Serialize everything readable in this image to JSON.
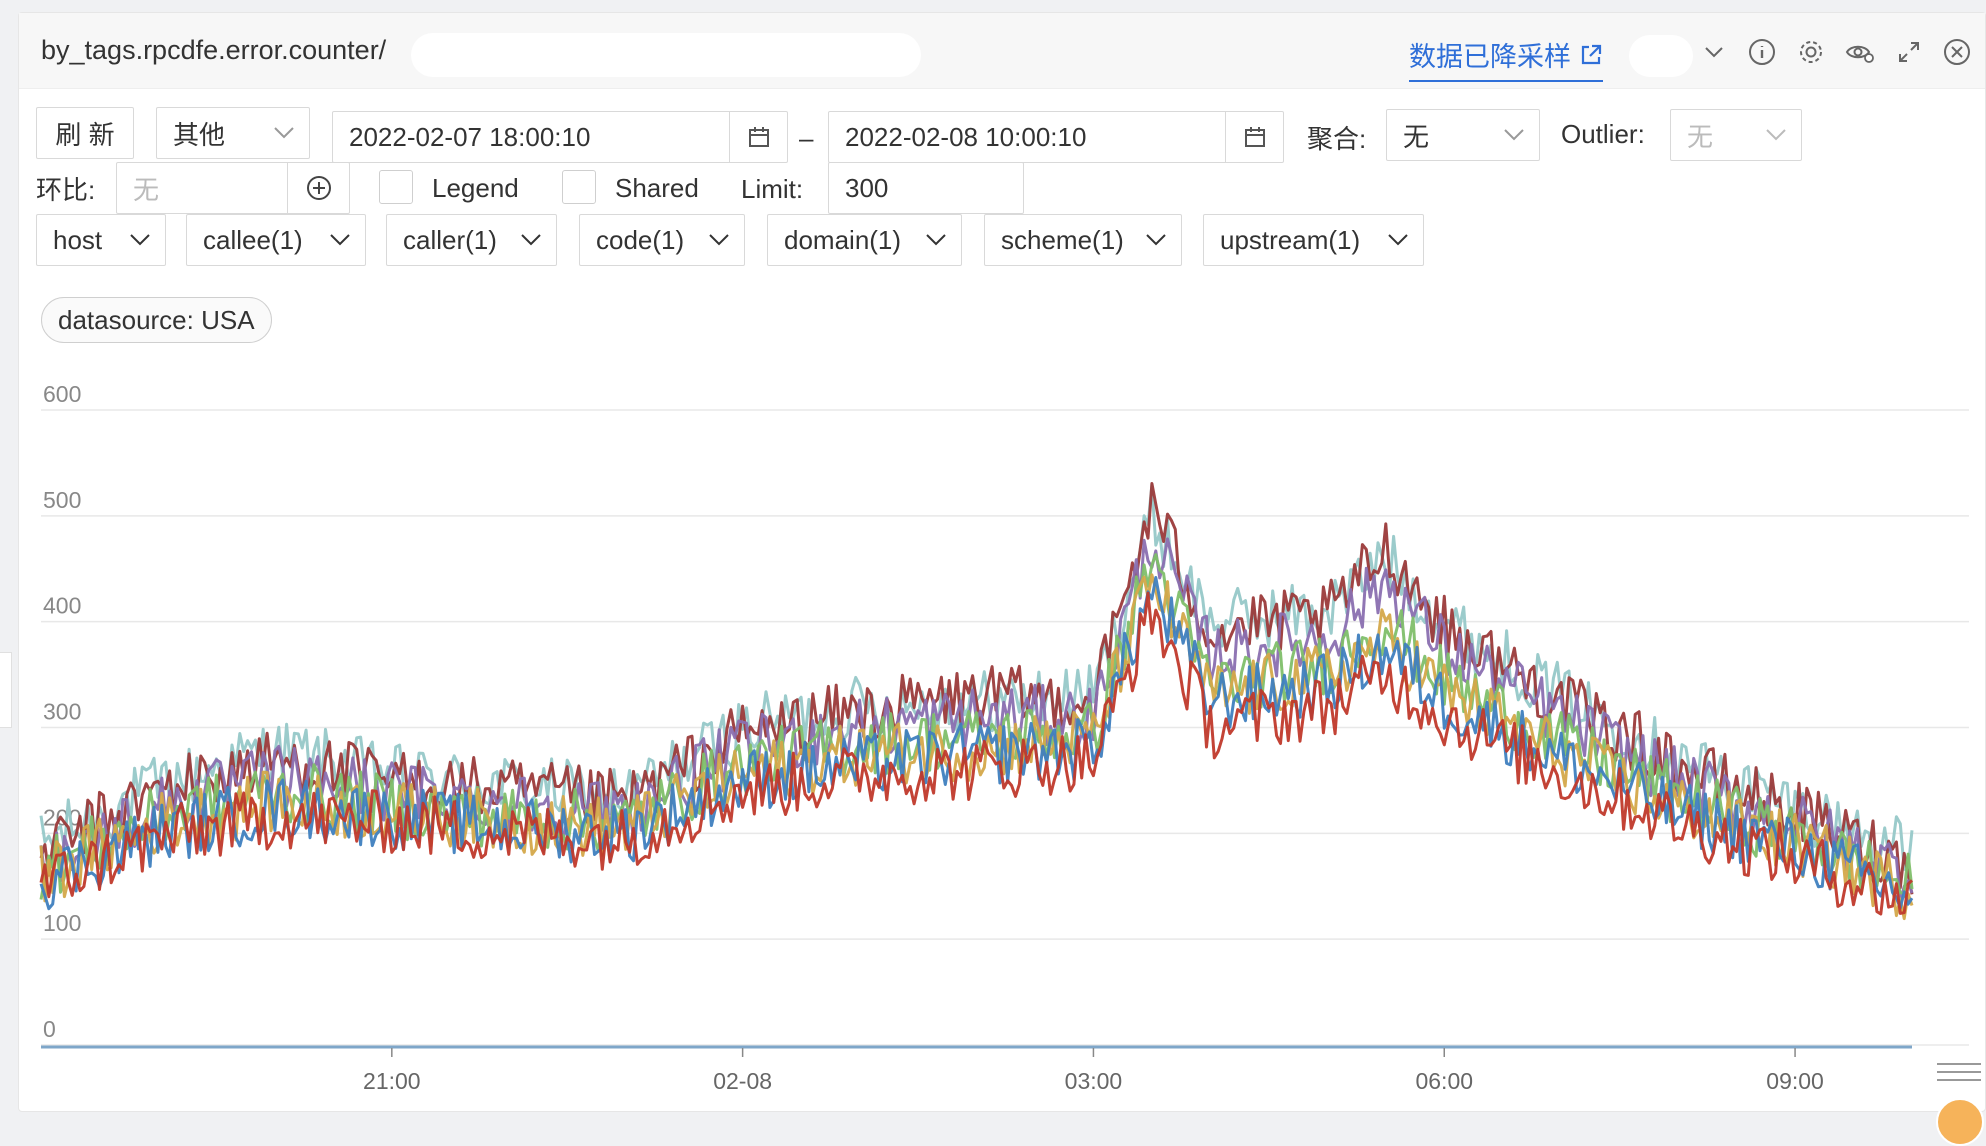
{
  "header": {
    "title": "by_tags.rpcdfe.error.counter/",
    "downsample_label": "数据已降采样"
  },
  "toolbar": {
    "refresh": "刷 新",
    "other": "其他",
    "start_time": "2022-02-07 18:00:10",
    "range_sep": "–",
    "end_time": "2022-02-08 10:00:10",
    "agg_label": "聚合:",
    "agg_value": "无",
    "outlier_label": "Outlier:",
    "outlier_value": "无",
    "compare_label": "环比:",
    "compare_placeholder": "无",
    "legend_label": "Legend",
    "shared_label": "Shared",
    "limit_label": "Limit:",
    "limit_value": "300"
  },
  "filters": [
    {
      "label": "host"
    },
    {
      "label": "callee(1)"
    },
    {
      "label": "caller(1)"
    },
    {
      "label": "code(1)"
    },
    {
      "label": "domain(1)"
    },
    {
      "label": "scheme(1)"
    },
    {
      "label": "upstream(1)"
    }
  ],
  "tag_chip": "datasource: USA",
  "chart_data": {
    "type": "line",
    "title": "",
    "xlabel": "",
    "ylabel": "",
    "ylim": [
      0,
      600
    ],
    "yticks": [
      "0",
      "100",
      "200",
      "300",
      "400",
      "500",
      "600"
    ],
    "xticks": [
      "21:00",
      "02-08",
      "03:00",
      "06:00",
      "09:00"
    ],
    "x": [
      "18:00",
      "19:00",
      "20:00",
      "21:00",
      "22:00",
      "23:00",
      "00:00",
      "01:00",
      "02:00",
      "03:00",
      "03:30",
      "04:00",
      "05:00",
      "05:30",
      "06:00",
      "07:00",
      "08:00",
      "09:00",
      "10:00"
    ],
    "series": [
      {
        "color": "#96c8c8",
        "values": [
          190,
          245,
          280,
          255,
          245,
          235,
          300,
          320,
          325,
          330,
          500,
          400,
          410,
          460,
          400,
          330,
          270,
          225,
          180
        ]
      },
      {
        "color": "#9b3a3a",
        "values": [
          180,
          240,
          270,
          250,
          240,
          230,
          295,
          315,
          330,
          325,
          510,
          390,
          405,
          470,
          395,
          325,
          265,
          220,
          170
        ]
      },
      {
        "color": "#8a6fb0",
        "values": [
          170,
          225,
          255,
          240,
          230,
          220,
          280,
          300,
          310,
          310,
          480,
          370,
          385,
          440,
          375,
          310,
          250,
          210,
          160
        ]
      },
      {
        "color": "#7fbf6a",
        "values": [
          165,
          215,
          240,
          225,
          215,
          210,
          265,
          285,
          290,
          295,
          460,
          340,
          360,
          400,
          345,
          285,
          235,
          195,
          150
        ]
      },
      {
        "color": "#d4a84a",
        "values": [
          160,
          210,
          230,
          220,
          210,
          205,
          255,
          275,
          280,
          290,
          440,
          330,
          350,
          385,
          335,
          275,
          225,
          190,
          145
        ]
      },
      {
        "color": "#3f7fbf",
        "values": [
          155,
          200,
          225,
          215,
          205,
          200,
          250,
          265,
          275,
          280,
          430,
          325,
          340,
          375,
          325,
          270,
          220,
          185,
          140
        ]
      },
      {
        "color": "#c0392b",
        "values": [
          150,
          195,
          215,
          210,
          200,
          195,
          240,
          255,
          260,
          270,
          410,
          300,
          320,
          350,
          310,
          255,
          210,
          175,
          135
        ]
      }
    ]
  },
  "colors": {
    "link": "#2f6fd8",
    "border": "#d9d9d9"
  }
}
